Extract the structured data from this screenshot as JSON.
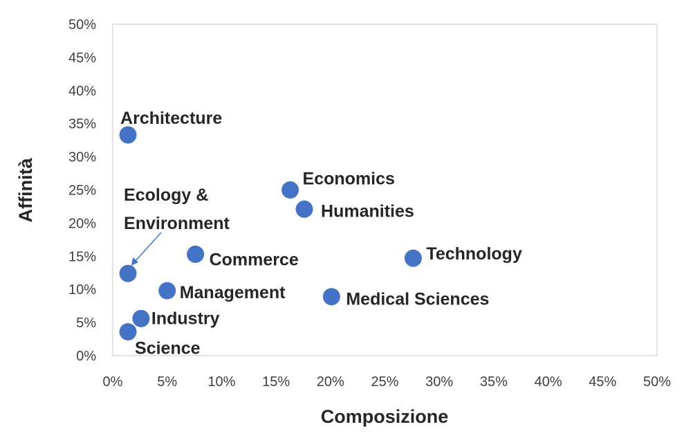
{
  "chart_data": {
    "type": "scatter",
    "title": "",
    "xlabel": "Composizione",
    "ylabel": "Affinità",
    "xlim": [
      0,
      50
    ],
    "ylim": [
      0,
      50
    ],
    "x_ticks": [
      "0%",
      "5%",
      "10%",
      "15%",
      "20%",
      "25%",
      "30%",
      "35%",
      "40%",
      "45%",
      "50%"
    ],
    "y_ticks": [
      "0%",
      "5%",
      "10%",
      "15%",
      "20%",
      "25%",
      "30%",
      "35%",
      "40%",
      "45%",
      "50%"
    ],
    "grid": false,
    "legend": "none",
    "marker_color": "#4472C4",
    "points": [
      {
        "label": "Architecture",
        "x": 1.4,
        "y": 33.3
      },
      {
        "label": "Economics",
        "x": 16.3,
        "y": 25.0
      },
      {
        "label": "Humanities",
        "x": 17.6,
        "y": 22.1
      },
      {
        "label": "Commerce",
        "x": 7.6,
        "y": 15.3
      },
      {
        "label": "Technology",
        "x": 27.6,
        "y": 14.7
      },
      {
        "label": "Ecology &\nEnvironment",
        "x": 1.4,
        "y": 12.4
      },
      {
        "label": "Management",
        "x": 5.0,
        "y": 9.8
      },
      {
        "label": "Medical Sciences",
        "x": 20.1,
        "y": 8.9
      },
      {
        "label": "Industry",
        "x": 2.6,
        "y": 5.6
      },
      {
        "label": "Science",
        "x": 1.4,
        "y": 3.6
      }
    ]
  }
}
